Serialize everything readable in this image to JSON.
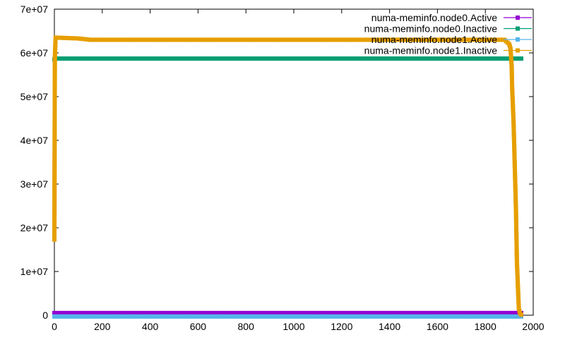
{
  "chart_data": {
    "type": "line",
    "title": "",
    "xlabel": "",
    "ylabel": "",
    "xlim": [
      0,
      2000
    ],
    "ylim": [
      0,
      70000000
    ],
    "x_ticks": [
      0,
      200,
      400,
      600,
      800,
      1000,
      1200,
      1400,
      1600,
      1800,
      2000
    ],
    "x_tick_labels": [
      "0",
      "200",
      "400",
      "600",
      "800",
      "1000",
      "1200",
      "1400",
      "1600",
      "1800",
      "2000"
    ],
    "y_ticks": [
      0,
      10000000,
      20000000,
      30000000,
      40000000,
      50000000,
      60000000,
      70000000
    ],
    "y_tick_labels": [
      "0",
      "1e+07",
      "2e+07",
      "3e+07",
      "4e+07",
      "5e+07",
      "6e+07",
      "7e+07"
    ],
    "grid": false,
    "legend_position": "top-right",
    "series": [
      {
        "name": "numa-meminfo.node0.Active",
        "color": "#9400d3",
        "marker": "square",
        "x": [
          0,
          1950
        ],
        "y": [
          500000,
          500000
        ]
      },
      {
        "name": "numa-meminfo.node0.Inactive",
        "color": "#009e73",
        "marker": "square",
        "x": [
          0,
          5,
          1950
        ],
        "y": [
          58500000,
          58700000,
          58700000
        ]
      },
      {
        "name": "numa-meminfo.node1.Active",
        "color": "#56b4e9",
        "marker": "square",
        "x": [
          0,
          1950
        ],
        "y": [
          -300000,
          -300000
        ]
      },
      {
        "name": "numa-meminfo.node1.Inactive",
        "color": "#e69f00",
        "marker": "square",
        "x": [
          0,
          2,
          5,
          50,
          100,
          150,
          300,
          600,
          900,
          1200,
          1500,
          1800,
          1880,
          1900,
          1905,
          1910,
          1912,
          1915,
          1918,
          1920,
          1922,
          1925,
          1928,
          1930,
          1932,
          1935,
          1938,
          1940,
          1945,
          1950
        ],
        "y": [
          17300000,
          59000000,
          63500000,
          63400000,
          63300000,
          63000000,
          63000000,
          63000000,
          63000000,
          63000000,
          63000000,
          63000000,
          63000000,
          62000000,
          61000000,
          57000000,
          52000000,
          48000000,
          44000000,
          40000000,
          36000000,
          30000000,
          24000000,
          18000000,
          12000000,
          8000000,
          4000000,
          1500000,
          400000,
          100000
        ]
      }
    ]
  }
}
